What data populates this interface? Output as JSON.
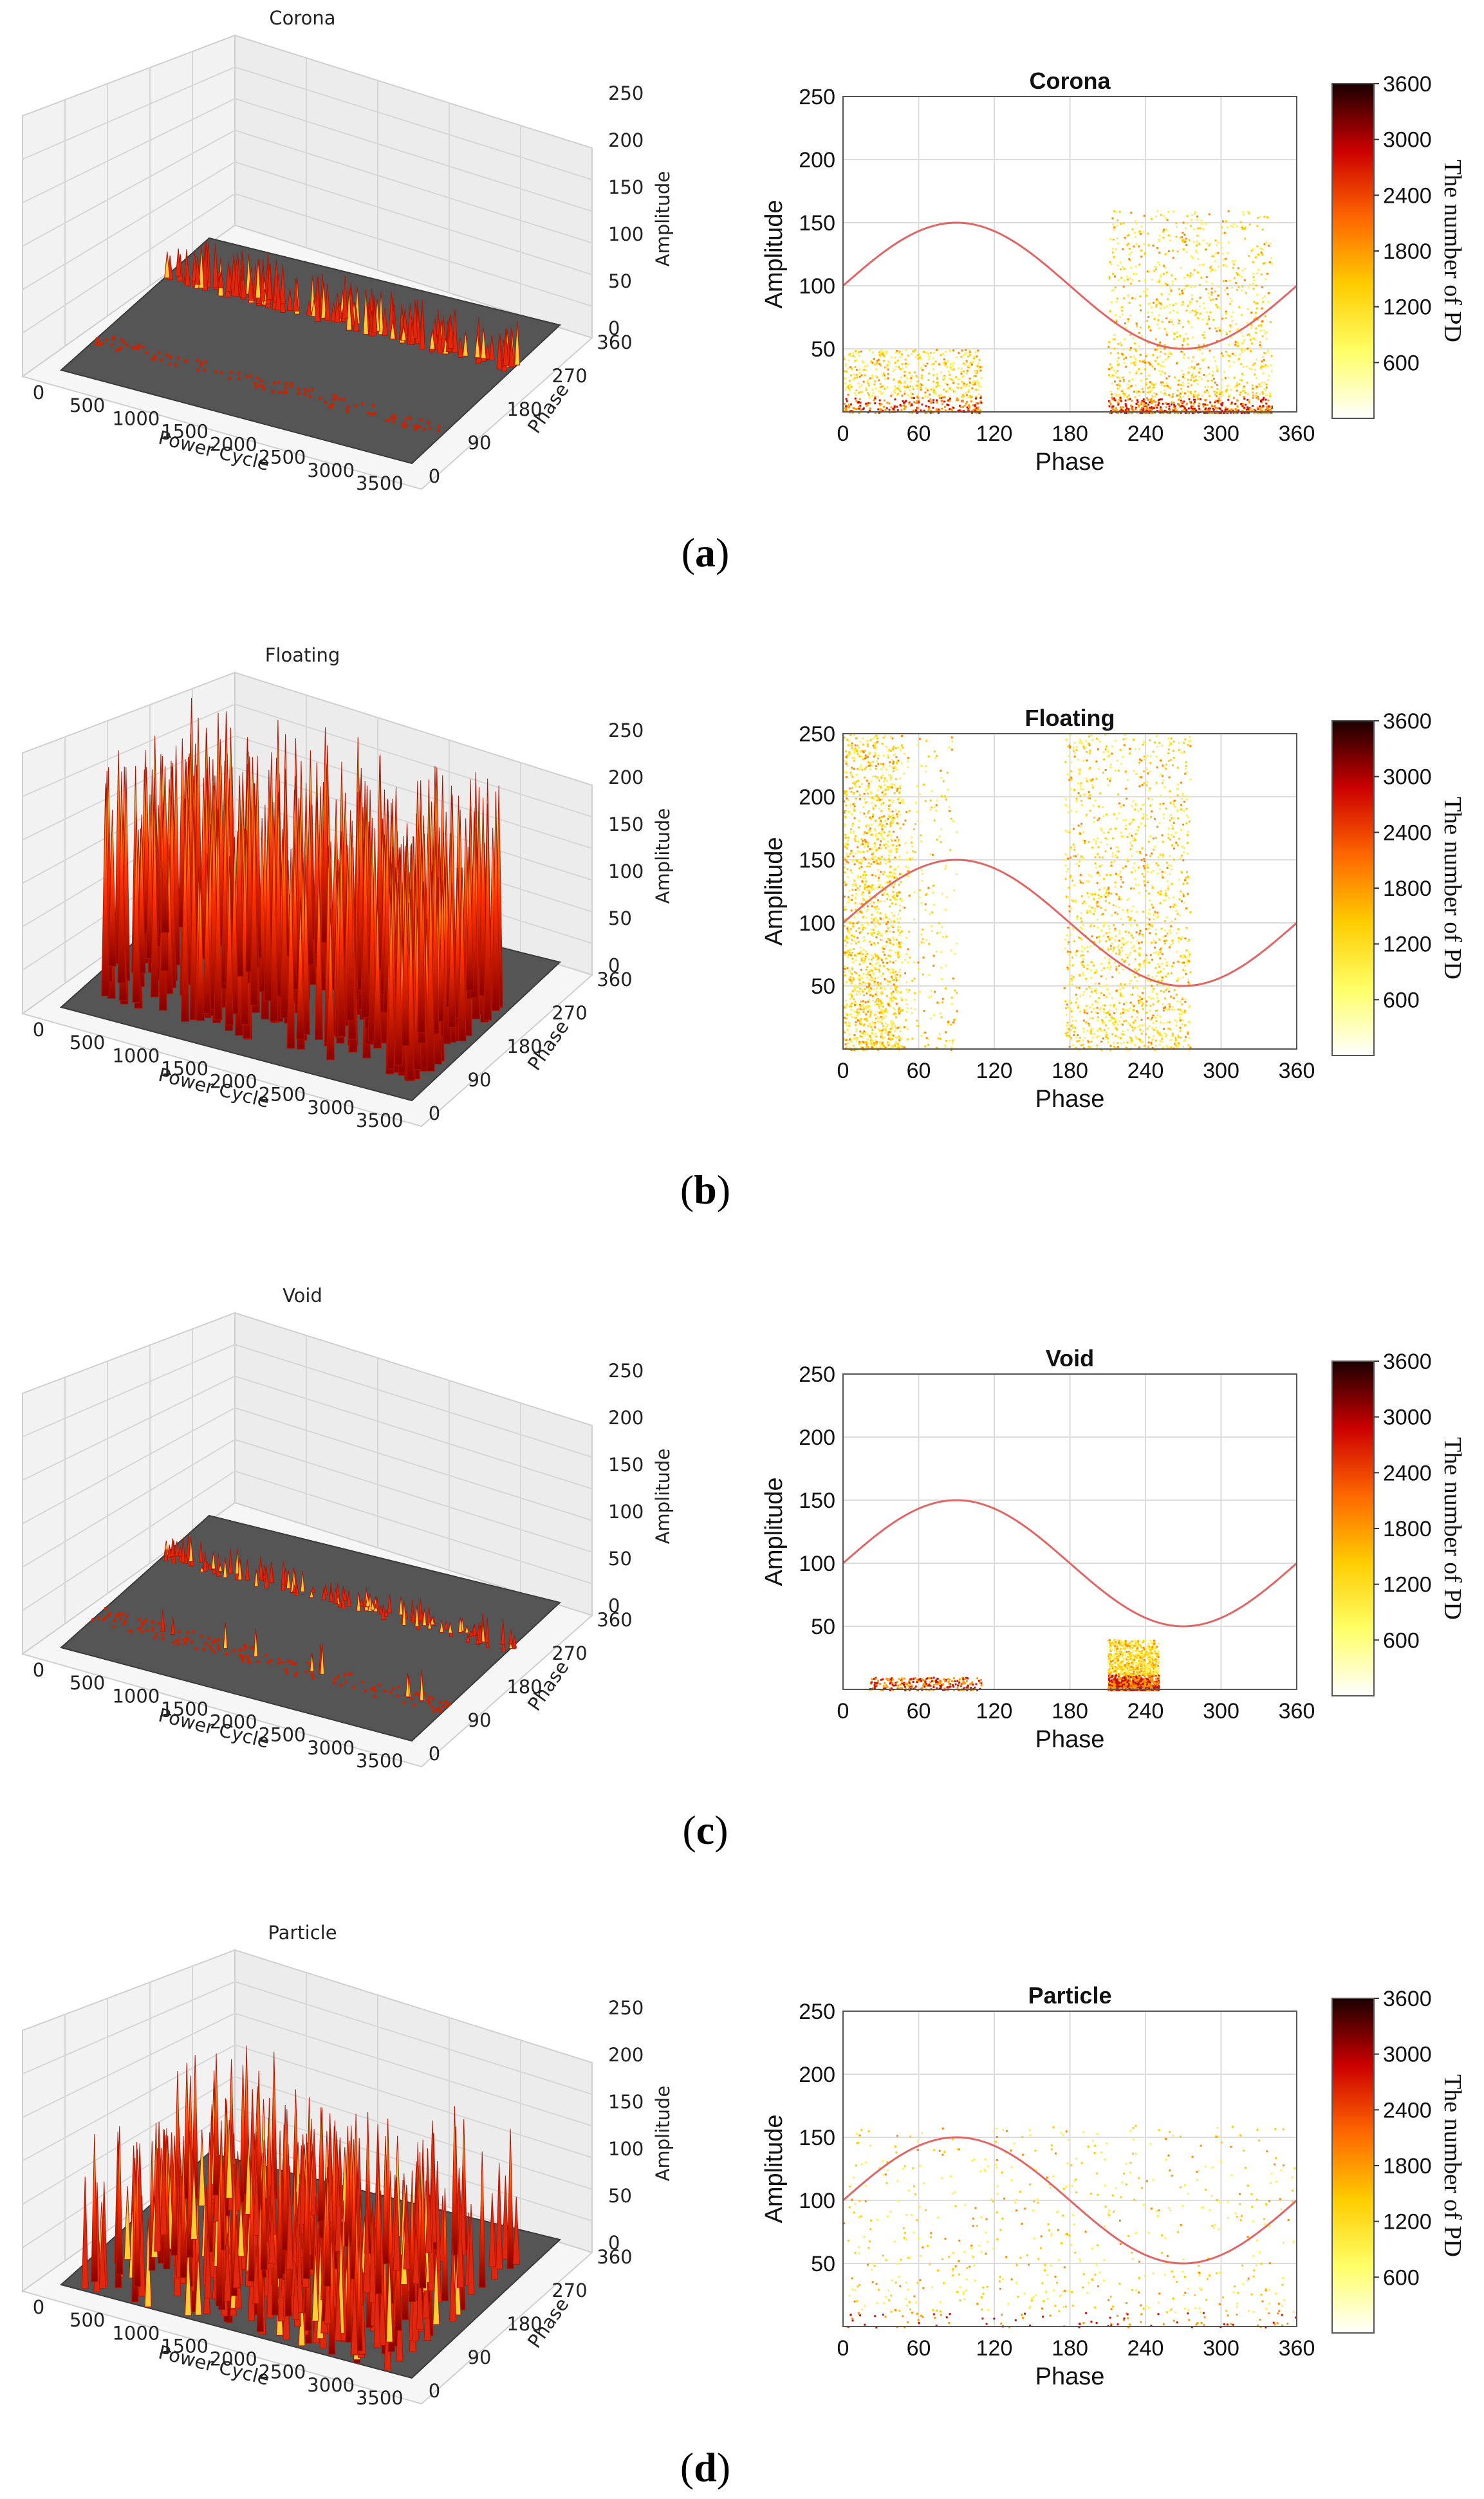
{
  "figure": {
    "surface_axis_labels": {
      "x": "Power Cycle",
      "y": "Phase",
      "z": "Amplitude"
    },
    "surface_x_ticks": [
      "0",
      "500",
      "1000",
      "1500",
      "2000",
      "2500",
      "3000",
      "3500"
    ],
    "surface_y_ticks": [
      "0",
      "90",
      "180",
      "270",
      "360"
    ],
    "surface_z_ticks": [
      "0",
      "50",
      "100",
      "150",
      "200",
      "250"
    ],
    "colorbar": {
      "label": "The number of PD",
      "ticks": [
        "600",
        "1200",
        "1800",
        "2400",
        "3000",
        "3600"
      ]
    },
    "colors": {
      "low": "#ffffcc",
      "mid": "#ffd700",
      "high": "#e31a1c",
      "max": "#300000",
      "sine": "#e06666",
      "floor": "#555555"
    }
  },
  "panels": [
    {
      "id": "a",
      "caption_letter": "a",
      "title": "Corona",
      "pattern": "corona"
    },
    {
      "id": "b",
      "caption_letter": "b",
      "title": "Floating",
      "pattern": "floating"
    },
    {
      "id": "c",
      "caption_letter": "c",
      "title": "Void",
      "pattern": "void"
    },
    {
      "id": "d",
      "caption_letter": "d",
      "title": "Particle",
      "pattern": "particle"
    }
  ],
  "chart_data": [
    {
      "type": "scatter",
      "title": "Corona",
      "xlabel": "Phase",
      "ylabel": "Amplitude",
      "xlim": [
        0,
        360
      ],
      "ylim": [
        0,
        250
      ],
      "xticks": [
        0,
        60,
        120,
        180,
        240,
        300,
        360
      ],
      "yticks": [
        50,
        100,
        150,
        200,
        250
      ],
      "reference_curve": {
        "form": "100+50*sin(phase)",
        "offset": 100,
        "amplitude": 50
      },
      "clusters": [
        {
          "phase": [
            0,
            110
          ],
          "amplitude": [
            0,
            50
          ],
          "density": "medium"
        },
        {
          "phase": [
            210,
            340
          ],
          "amplitude": [
            0,
            160
          ],
          "density": "high"
        }
      ],
      "colorbar_range": [
        0,
        3600
      ]
    },
    {
      "type": "scatter",
      "title": "Floating",
      "xlabel": "Phase",
      "ylabel": "Amplitude",
      "xlim": [
        0,
        360
      ],
      "ylim": [
        0,
        250
      ],
      "xticks": [
        0,
        60,
        120,
        180,
        240,
        300,
        360
      ],
      "yticks": [
        50,
        100,
        150,
        200,
        250
      ],
      "reference_curve": {
        "form": "100+50*sin(phase)",
        "offset": 100,
        "amplitude": 50
      },
      "clusters": [
        {
          "phase": [
            0,
            45
          ],
          "amplitude": [
            0,
            250
          ],
          "density": "high"
        },
        {
          "phase": [
            45,
            90
          ],
          "amplitude": [
            0,
            250
          ],
          "density": "low"
        },
        {
          "phase": [
            175,
            275
          ],
          "amplitude": [
            0,
            250
          ],
          "density": "high"
        }
      ],
      "colorbar_range": [
        0,
        3600
      ]
    },
    {
      "type": "scatter",
      "title": "Void",
      "xlabel": "Phase",
      "ylabel": "Amplitude",
      "xlim": [
        0,
        360
      ],
      "ylim": [
        0,
        250
      ],
      "xticks": [
        0,
        60,
        120,
        180,
        240,
        300,
        360
      ],
      "yticks": [
        50,
        100,
        150,
        200,
        250
      ],
      "reference_curve": {
        "form": "100+50*sin(phase)",
        "offset": 100,
        "amplitude": 50
      },
      "clusters": [
        {
          "phase": [
            20,
            110
          ],
          "amplitude": [
            0,
            10
          ],
          "density": "low"
        },
        {
          "phase": [
            210,
            250
          ],
          "amplitude": [
            0,
            40
          ],
          "density": "high"
        }
      ],
      "colorbar_range": [
        0,
        3600
      ]
    },
    {
      "type": "scatter",
      "title": "Particle",
      "xlabel": "Phase",
      "ylabel": "Amplitude",
      "xlim": [
        0,
        360
      ],
      "ylim": [
        0,
        250
      ],
      "xticks": [
        0,
        60,
        120,
        180,
        240,
        300,
        360
      ],
      "yticks": [
        50,
        100,
        150,
        200,
        250
      ],
      "reference_curve": {
        "form": "100+50*sin(phase)",
        "offset": 100,
        "amplitude": 50
      },
      "clusters": [
        {
          "phase": [
            0,
            360
          ],
          "amplitude": [
            0,
            160
          ],
          "density": "medium"
        }
      ],
      "colorbar_range": [
        0,
        3600
      ]
    }
  ]
}
